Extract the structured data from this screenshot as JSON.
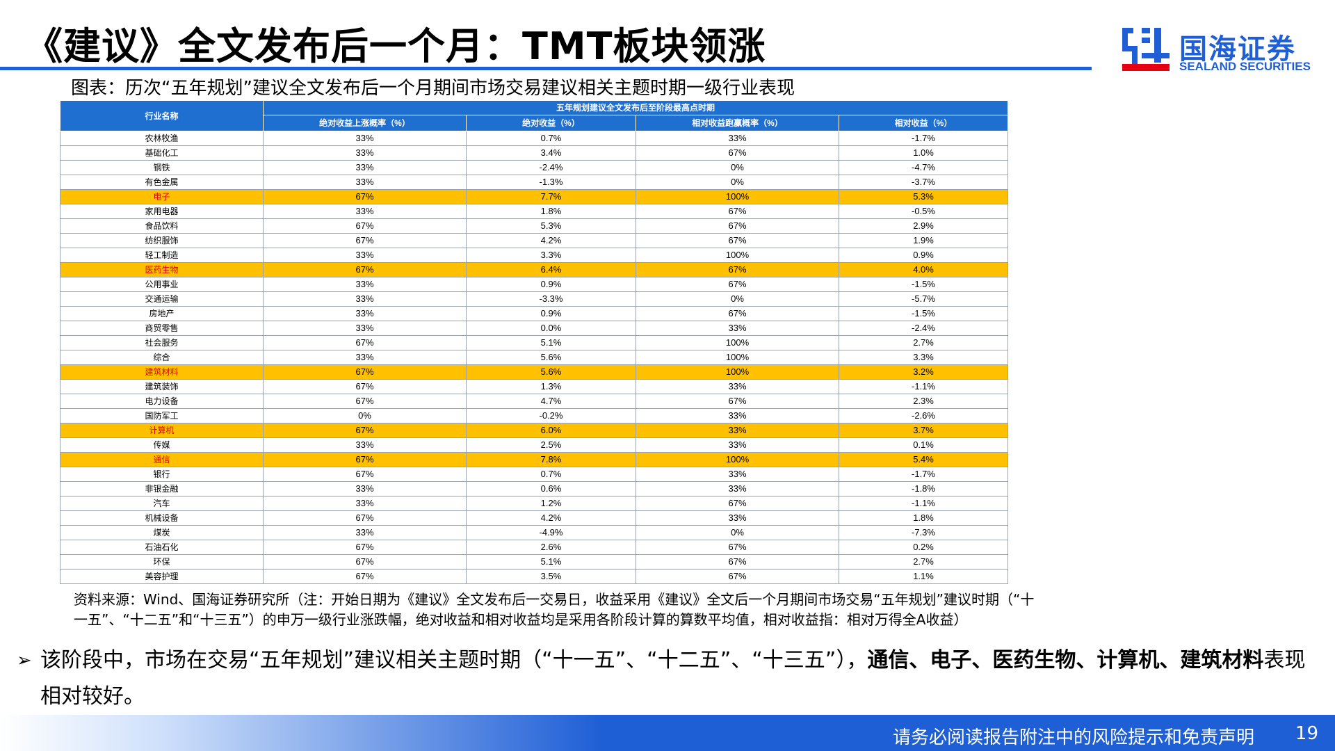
{
  "title": "《建议》全文发布后一个月：TMT板块领涨",
  "logo": {
    "cn": "国海证券",
    "en": "SEALAND SECURITIES"
  },
  "caption": "图表：历次“五年规划”建议全文发布后一个月期间市场交易建议相关主题时期一级行业表现",
  "table": {
    "header_industry": "行业名称",
    "header_group": "五年规划建议全文发布后至阶段最高点时期",
    "columns": [
      "绝对收益上涨概率（%）",
      "绝对收益（%）",
      "相对收益跑赢概率（%）",
      "相对收益（%）"
    ],
    "rows": [
      {
        "name": "农林牧渔",
        "c1": "33%",
        "c2": "0.7%",
        "c3": "33%",
        "c4": "-1.7%",
        "hl": false
      },
      {
        "name": "基础化工",
        "c1": "33%",
        "c2": "3.4%",
        "c3": "67%",
        "c4": "1.0%",
        "hl": false
      },
      {
        "name": "钢铁",
        "c1": "33%",
        "c2": "-2.4%",
        "c3": "0%",
        "c4": "-4.7%",
        "hl": false
      },
      {
        "name": "有色金属",
        "c1": "33%",
        "c2": "-1.3%",
        "c3": "0%",
        "c4": "-3.7%",
        "hl": false
      },
      {
        "name": "电子",
        "c1": "67%",
        "c2": "7.7%",
        "c3": "100%",
        "c4": "5.3%",
        "hl": true
      },
      {
        "name": "家用电器",
        "c1": "33%",
        "c2": "1.8%",
        "c3": "67%",
        "c4": "-0.5%",
        "hl": false
      },
      {
        "name": "食品饮料",
        "c1": "67%",
        "c2": "5.3%",
        "c3": "67%",
        "c4": "2.9%",
        "hl": false
      },
      {
        "name": "纺织服饰",
        "c1": "67%",
        "c2": "4.2%",
        "c3": "67%",
        "c4": "1.9%",
        "hl": false
      },
      {
        "name": "轻工制造",
        "c1": "33%",
        "c2": "3.3%",
        "c3": "100%",
        "c4": "0.9%",
        "hl": false
      },
      {
        "name": "医药生物",
        "c1": "67%",
        "c2": "6.4%",
        "c3": "67%",
        "c4": "4.0%",
        "hl": true
      },
      {
        "name": "公用事业",
        "c1": "33%",
        "c2": "0.9%",
        "c3": "67%",
        "c4": "-1.5%",
        "hl": false
      },
      {
        "name": "交通运输",
        "c1": "33%",
        "c2": "-3.3%",
        "c3": "0%",
        "c4": "-5.7%",
        "hl": false
      },
      {
        "name": "房地产",
        "c1": "33%",
        "c2": "0.9%",
        "c3": "67%",
        "c4": "-1.5%",
        "hl": false
      },
      {
        "name": "商贸零售",
        "c1": "33%",
        "c2": "0.0%",
        "c3": "33%",
        "c4": "-2.4%",
        "hl": false
      },
      {
        "name": "社会服务",
        "c1": "67%",
        "c2": "5.1%",
        "c3": "100%",
        "c4": "2.7%",
        "hl": false
      },
      {
        "name": "综合",
        "c1": "33%",
        "c2": "5.6%",
        "c3": "100%",
        "c4": "3.3%",
        "hl": false
      },
      {
        "name": "建筑材料",
        "c1": "67%",
        "c2": "5.6%",
        "c3": "100%",
        "c4": "3.2%",
        "hl": true
      },
      {
        "name": "建筑装饰",
        "c1": "67%",
        "c2": "1.3%",
        "c3": "33%",
        "c4": "-1.1%",
        "hl": false
      },
      {
        "name": "电力设备",
        "c1": "67%",
        "c2": "4.7%",
        "c3": "67%",
        "c4": "2.3%",
        "hl": false
      },
      {
        "name": "国防军工",
        "c1": "0%",
        "c2": "-0.2%",
        "c3": "33%",
        "c4": "-2.6%",
        "hl": false
      },
      {
        "name": "计算机",
        "c1": "67%",
        "c2": "6.0%",
        "c3": "33%",
        "c4": "3.7%",
        "hl": true
      },
      {
        "name": "传媒",
        "c1": "33%",
        "c2": "2.5%",
        "c3": "33%",
        "c4": "0.1%",
        "hl": false
      },
      {
        "name": "通信",
        "c1": "67%",
        "c2": "7.8%",
        "c3": "100%",
        "c4": "5.4%",
        "hl": true
      },
      {
        "name": "银行",
        "c1": "67%",
        "c2": "0.7%",
        "c3": "33%",
        "c4": "-1.7%",
        "hl": false
      },
      {
        "name": "非银金融",
        "c1": "33%",
        "c2": "0.6%",
        "c3": "33%",
        "c4": "-1.8%",
        "hl": false
      },
      {
        "name": "汽车",
        "c1": "33%",
        "c2": "1.2%",
        "c3": "67%",
        "c4": "-1.1%",
        "hl": false
      },
      {
        "name": "机械设备",
        "c1": "67%",
        "c2": "4.2%",
        "c3": "33%",
        "c4": "1.8%",
        "hl": false
      },
      {
        "name": "煤炭",
        "c1": "33%",
        "c2": "-4.9%",
        "c3": "0%",
        "c4": "-7.3%",
        "hl": false
      },
      {
        "name": "石油石化",
        "c1": "67%",
        "c2": "2.6%",
        "c3": "67%",
        "c4": "0.2%",
        "hl": false
      },
      {
        "name": "环保",
        "c1": "67%",
        "c2": "5.1%",
        "c3": "67%",
        "c4": "2.7%",
        "hl": false
      },
      {
        "name": "美容护理",
        "c1": "67%",
        "c2": "3.5%",
        "c3": "67%",
        "c4": "1.1%",
        "hl": false
      }
    ]
  },
  "source": "资料来源：Wind、国海证券研究所（注：开始日期为《建议》全文发布后一交易日，收益采用《建议》全文后一个月期间市场交易“五年规划”建议时期（“十一五”、“十二五”和“十三五”）的申万一级行业涨跌幅，绝对收益和相对收益均是采用各阶段计算的算数平均值，相对收益指：相对万得全A收益）",
  "bullet": {
    "arrow": "➢",
    "lead": "该阶段中，市场在交易“五年规划”建议相关主题时期（“十一五”、“十二五”、“十三五”），",
    "bold": "通信、电子、医药生物、计算机、建筑材料",
    "tail": "表现相对较好。"
  },
  "footer": {
    "disclaimer": "请务必阅读报告附注中的风险提示和免责声明",
    "page": "19"
  },
  "colors": {
    "brand_blue": "#1F5FD6",
    "highlight": "#FFC000",
    "highlight_text": "#E00000"
  }
}
